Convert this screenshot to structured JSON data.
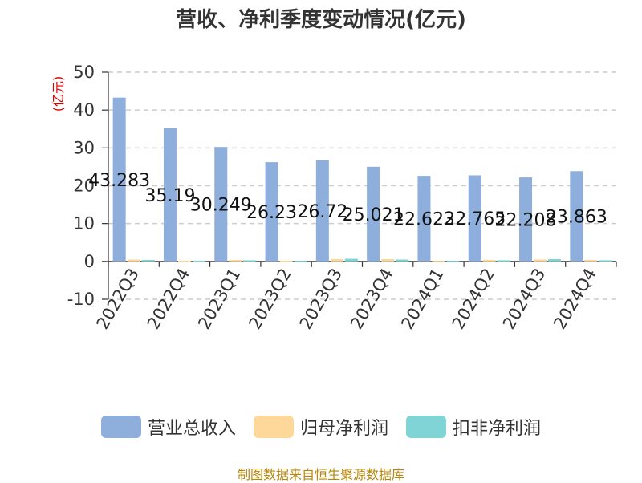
{
  "title": "营收、净利季度变动情况(亿元)",
  "source": "制图数据来自恒生聚源数据库",
  "colors": {
    "revenue": "#8eaedc",
    "net_profit": "#fdd89a",
    "deducted_profit": "#80d4d6"
  },
  "chart_data": {
    "type": "bar",
    "title": "营收、净利季度变动情况(亿元)",
    "xlabel": "",
    "ylabel": "(亿元)",
    "ylim": [
      -10,
      50
    ],
    "yticks": [
      -10,
      0,
      10,
      20,
      30,
      40,
      50
    ],
    "grid": true,
    "legend_position": "bottom",
    "categories": [
      "2022Q3",
      "2022Q4",
      "2023Q1",
      "2023Q2",
      "2023Q3",
      "2023Q4",
      "2024Q1",
      "2024Q2",
      "2024Q3",
      "2024Q4"
    ],
    "series": [
      {
        "name": "营业总收入",
        "values": [
          43.283,
          35.19,
          30.249,
          26.23,
          26.72,
          25.021,
          22.623,
          22.765,
          22.208,
          23.863
        ],
        "labels": [
          "43.283",
          "35.19",
          "30.249",
          "26.23",
          "26.72",
          "25.021",
          "22.623",
          "22.765",
          "22.208",
          "23.863"
        ]
      },
      {
        "name": "归母净利润",
        "values": [
          0.5,
          0.2,
          0.4,
          0.2,
          0.6,
          0.6,
          0.1,
          0.4,
          0.5,
          0.4
        ]
      },
      {
        "name": "扣非净利润",
        "values": [
          0.4,
          0.2,
          0.3,
          0.1,
          0.7,
          0.5,
          0.1,
          0.3,
          0.6,
          0.3
        ]
      }
    ]
  }
}
